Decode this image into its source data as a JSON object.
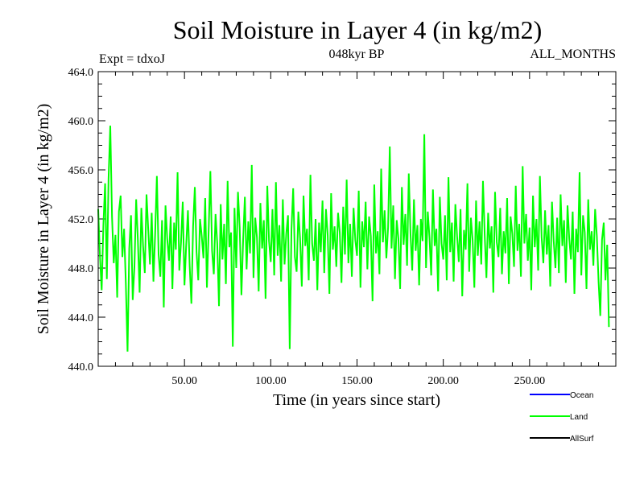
{
  "chart_data": {
    "type": "line",
    "title": "Soil Moisture in Layer 4 (in kg/m2)",
    "subtitle_left": "Expt = tdxoJ",
    "subtitle_center": "048kyr BP",
    "subtitle_right": "ALL_MONTHS",
    "xlabel": "Time (in years since start)",
    "ylabel": "Soil Moisture in Layer 4 (in kg/m2)",
    "xlim": [
      0,
      300
    ],
    "ylim": [
      440.0,
      464.0
    ],
    "x_ticks": [
      50,
      100,
      150,
      200,
      250
    ],
    "x_tick_labels": [
      "50.00",
      "100.00",
      "150.00",
      "200.00",
      "250.00"
    ],
    "y_ticks": [
      440,
      444,
      448,
      452,
      456,
      460,
      464
    ],
    "y_tick_labels": [
      "440.0",
      "444.0",
      "448.0",
      "452.0",
      "456.0",
      "460.0",
      "464.0"
    ],
    "legend_position": "bottom-right",
    "legend": [
      {
        "name": "Ocean",
        "color": "#0000ff"
      },
      {
        "name": "Land",
        "color": "#00ff00"
      },
      {
        "name": "AllSurf",
        "color": "#000000"
      }
    ],
    "series": [
      {
        "name": "Land",
        "color": "#00ff00",
        "x_start": 0,
        "x_step": 1,
        "values": [
          452.8,
          449.0,
          446.2,
          451.5,
          454.9,
          447.1,
          455.3,
          459.6,
          452.2,
          448.4,
          450.7,
          445.6,
          452.6,
          453.9,
          448.9,
          451.2,
          446.8,
          441.2,
          449.6,
          452.3,
          445.4,
          448.1,
          453.6,
          450.2,
          446.0,
          452.9,
          449.8,
          447.6,
          454.0,
          451.1,
          448.3,
          452.5,
          446.9,
          450.8,
          455.5,
          449.1,
          447.3,
          451.9,
          444.8,
          453.1,
          450.4,
          448.6,
          452.2,
          446.3,
          451.7,
          449.5,
          455.8,
          447.8,
          450.1,
          453.4,
          446.6,
          449.9,
          452.7,
          448.2,
          445.1,
          451.4,
          454.6,
          449.3,
          447.0,
          452.0,
          450.6,
          448.8,
          453.7,
          446.4,
          451.0,
          455.9,
          449.4,
          447.5,
          452.4,
          450.0,
          444.9,
          453.2,
          448.7,
          451.6,
          446.7,
          455.1,
          449.7,
          450.9,
          441.6,
          452.9,
          448.0,
          454.2,
          451.3,
          445.8,
          450.3,
          453.8,
          447.9,
          451.8,
          449.2,
          456.4,
          447.2,
          452.1,
          450.5,
          446.1,
          453.3,
          449.6,
          451.9,
          445.5,
          454.7,
          450.2,
          448.5,
          452.8,
          447.4,
          455.0,
          449.0,
          451.5,
          446.9,
          453.6,
          448.3,
          450.8,
          452.3,
          441.4,
          451.1,
          454.5,
          448.9,
          447.7,
          452.6,
          450.4,
          446.5,
          453.9,
          449.8,
          451.2,
          447.0,
          455.6,
          450.0,
          448.6,
          452.0,
          446.2,
          451.7,
          449.3,
          453.5,
          447.6,
          452.8,
          450.7,
          445.9,
          454.1,
          449.5,
          451.4,
          448.1,
          452.5,
          450.9,
          446.8,
          453.0,
          449.1,
          455.2,
          448.4,
          451.6,
          447.3,
          452.9,
          450.3,
          449.0,
          454.3,
          446.4,
          451.8,
          449.7,
          453.4,
          447.9,
          452.2,
          450.6,
          445.3,
          454.8,
          449.2,
          451.0,
          447.5,
          456.1,
          450.1,
          452.7,
          448.8,
          451.3,
          457.9,
          449.6,
          453.1,
          447.1,
          451.9,
          450.4,
          446.3,
          454.6,
          449.9,
          452.4,
          448.2,
          455.7,
          450.8,
          447.8,
          453.6,
          449.4,
          451.5,
          446.6,
          452.0,
          450.2,
          458.9,
          448.0,
          452.6,
          450.5,
          447.4,
          454.4,
          449.8,
          451.2,
          446.1,
          453.8,
          450.0,
          448.7,
          452.3,
          447.0,
          455.4,
          449.3,
          451.7,
          446.9,
          453.2,
          450.6,
          448.5,
          452.8,
          445.7,
          451.1,
          449.5,
          454.9,
          447.7,
          452.1,
          450.3,
          446.4,
          453.5,
          449.0,
          451.8,
          448.3,
          455.1,
          450.7,
          447.2,
          452.5,
          449.6,
          451.4,
          446.0,
          454.2,
          450.1,
          448.9,
          452.9,
          447.5,
          451.0,
          449.2,
          453.7,
          446.7,
          452.2,
          450.8,
          448.1,
          454.7,
          449.4,
          451.6,
          447.3,
          456.3,
          450.0,
          452.4,
          448.6,
          451.3,
          446.2,
          453.9,
          449.7,
          452.0,
          447.8,
          455.5,
          450.5,
          448.4,
          452.7,
          449.1,
          451.5,
          446.5,
          453.4,
          450.2,
          448.0,
          452.1,
          447.6,
          454.0,
          449.8,
          451.9,
          446.8,
          453.1,
          450.4,
          448.7,
          452.6,
          445.9,
          451.2,
          449.3,
          455.8,
          447.4,
          452.3,
          450.9,
          446.3,
          453.6,
          449.5,
          451.0,
          448.2,
          452.8,
          450.6,
          446.9,
          444.1,
          450.3,
          451.7,
          447.0,
          449.9,
          443.2
        ]
      }
    ]
  }
}
